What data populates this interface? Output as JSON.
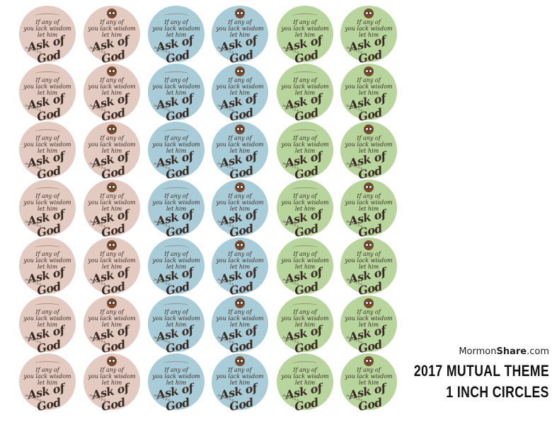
{
  "sticker": {
    "line1": "If any of",
    "line2": "you lack wisdom",
    "line3": "let him",
    "emphasis": "Ask of God",
    "reference": "James 1:5-6"
  },
  "columns": [
    {
      "color": "#e4cbc1",
      "owl": false
    },
    {
      "color": "#e4cbc1",
      "owl": true
    },
    {
      "color": "#a9cdd8",
      "owl": false
    },
    {
      "color": "#a9cdd8",
      "owl": true
    },
    {
      "color": "#b7d59c",
      "owl": false
    },
    {
      "color": "#b7d59c",
      "owl": true
    }
  ],
  "rows": 7,
  "brand": {
    "prefix": "Mormon",
    "bold": "Share",
    "suffix": ".com"
  },
  "title_line1": "2017 MUTUAL THEME",
  "title_line2": "1 INCH CIRCLES"
}
